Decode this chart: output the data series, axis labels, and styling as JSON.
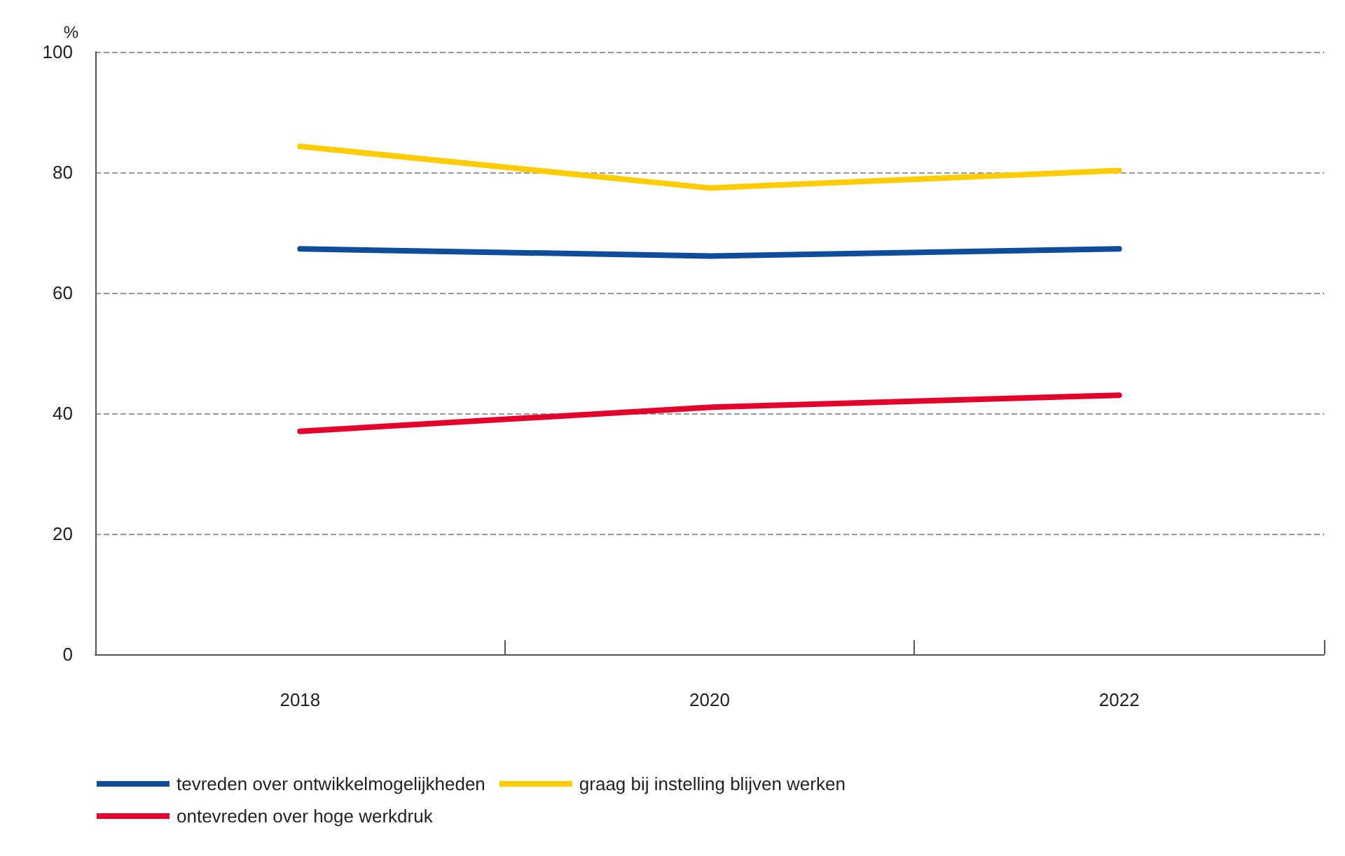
{
  "chart_data": {
    "type": "line",
    "ylabel": "%",
    "categories": [
      "2018",
      "2020",
      "2022"
    ],
    "series": [
      {
        "name": "tevreden over ontwikkelmogelijkheden",
        "color": "#0f4c9c",
        "values": [
          67.3,
          66.1,
          67.3
        ]
      },
      {
        "name": "ontevreden over hoge werkdruk",
        "color": "#e4002b",
        "values": [
          37,
          41,
          43
        ]
      },
      {
        "name": "graag bij instelling blijven werken",
        "color": "#ffcc00",
        "values": [
          84.3,
          77.4,
          80.3
        ]
      }
    ],
    "ylim": [
      0,
      100
    ],
    "yticks": [
      0,
      20,
      40,
      60,
      80,
      100
    ],
    "grid": "y",
    "legend": "bottom left",
    "marker": "none",
    "line_style": "solid"
  }
}
